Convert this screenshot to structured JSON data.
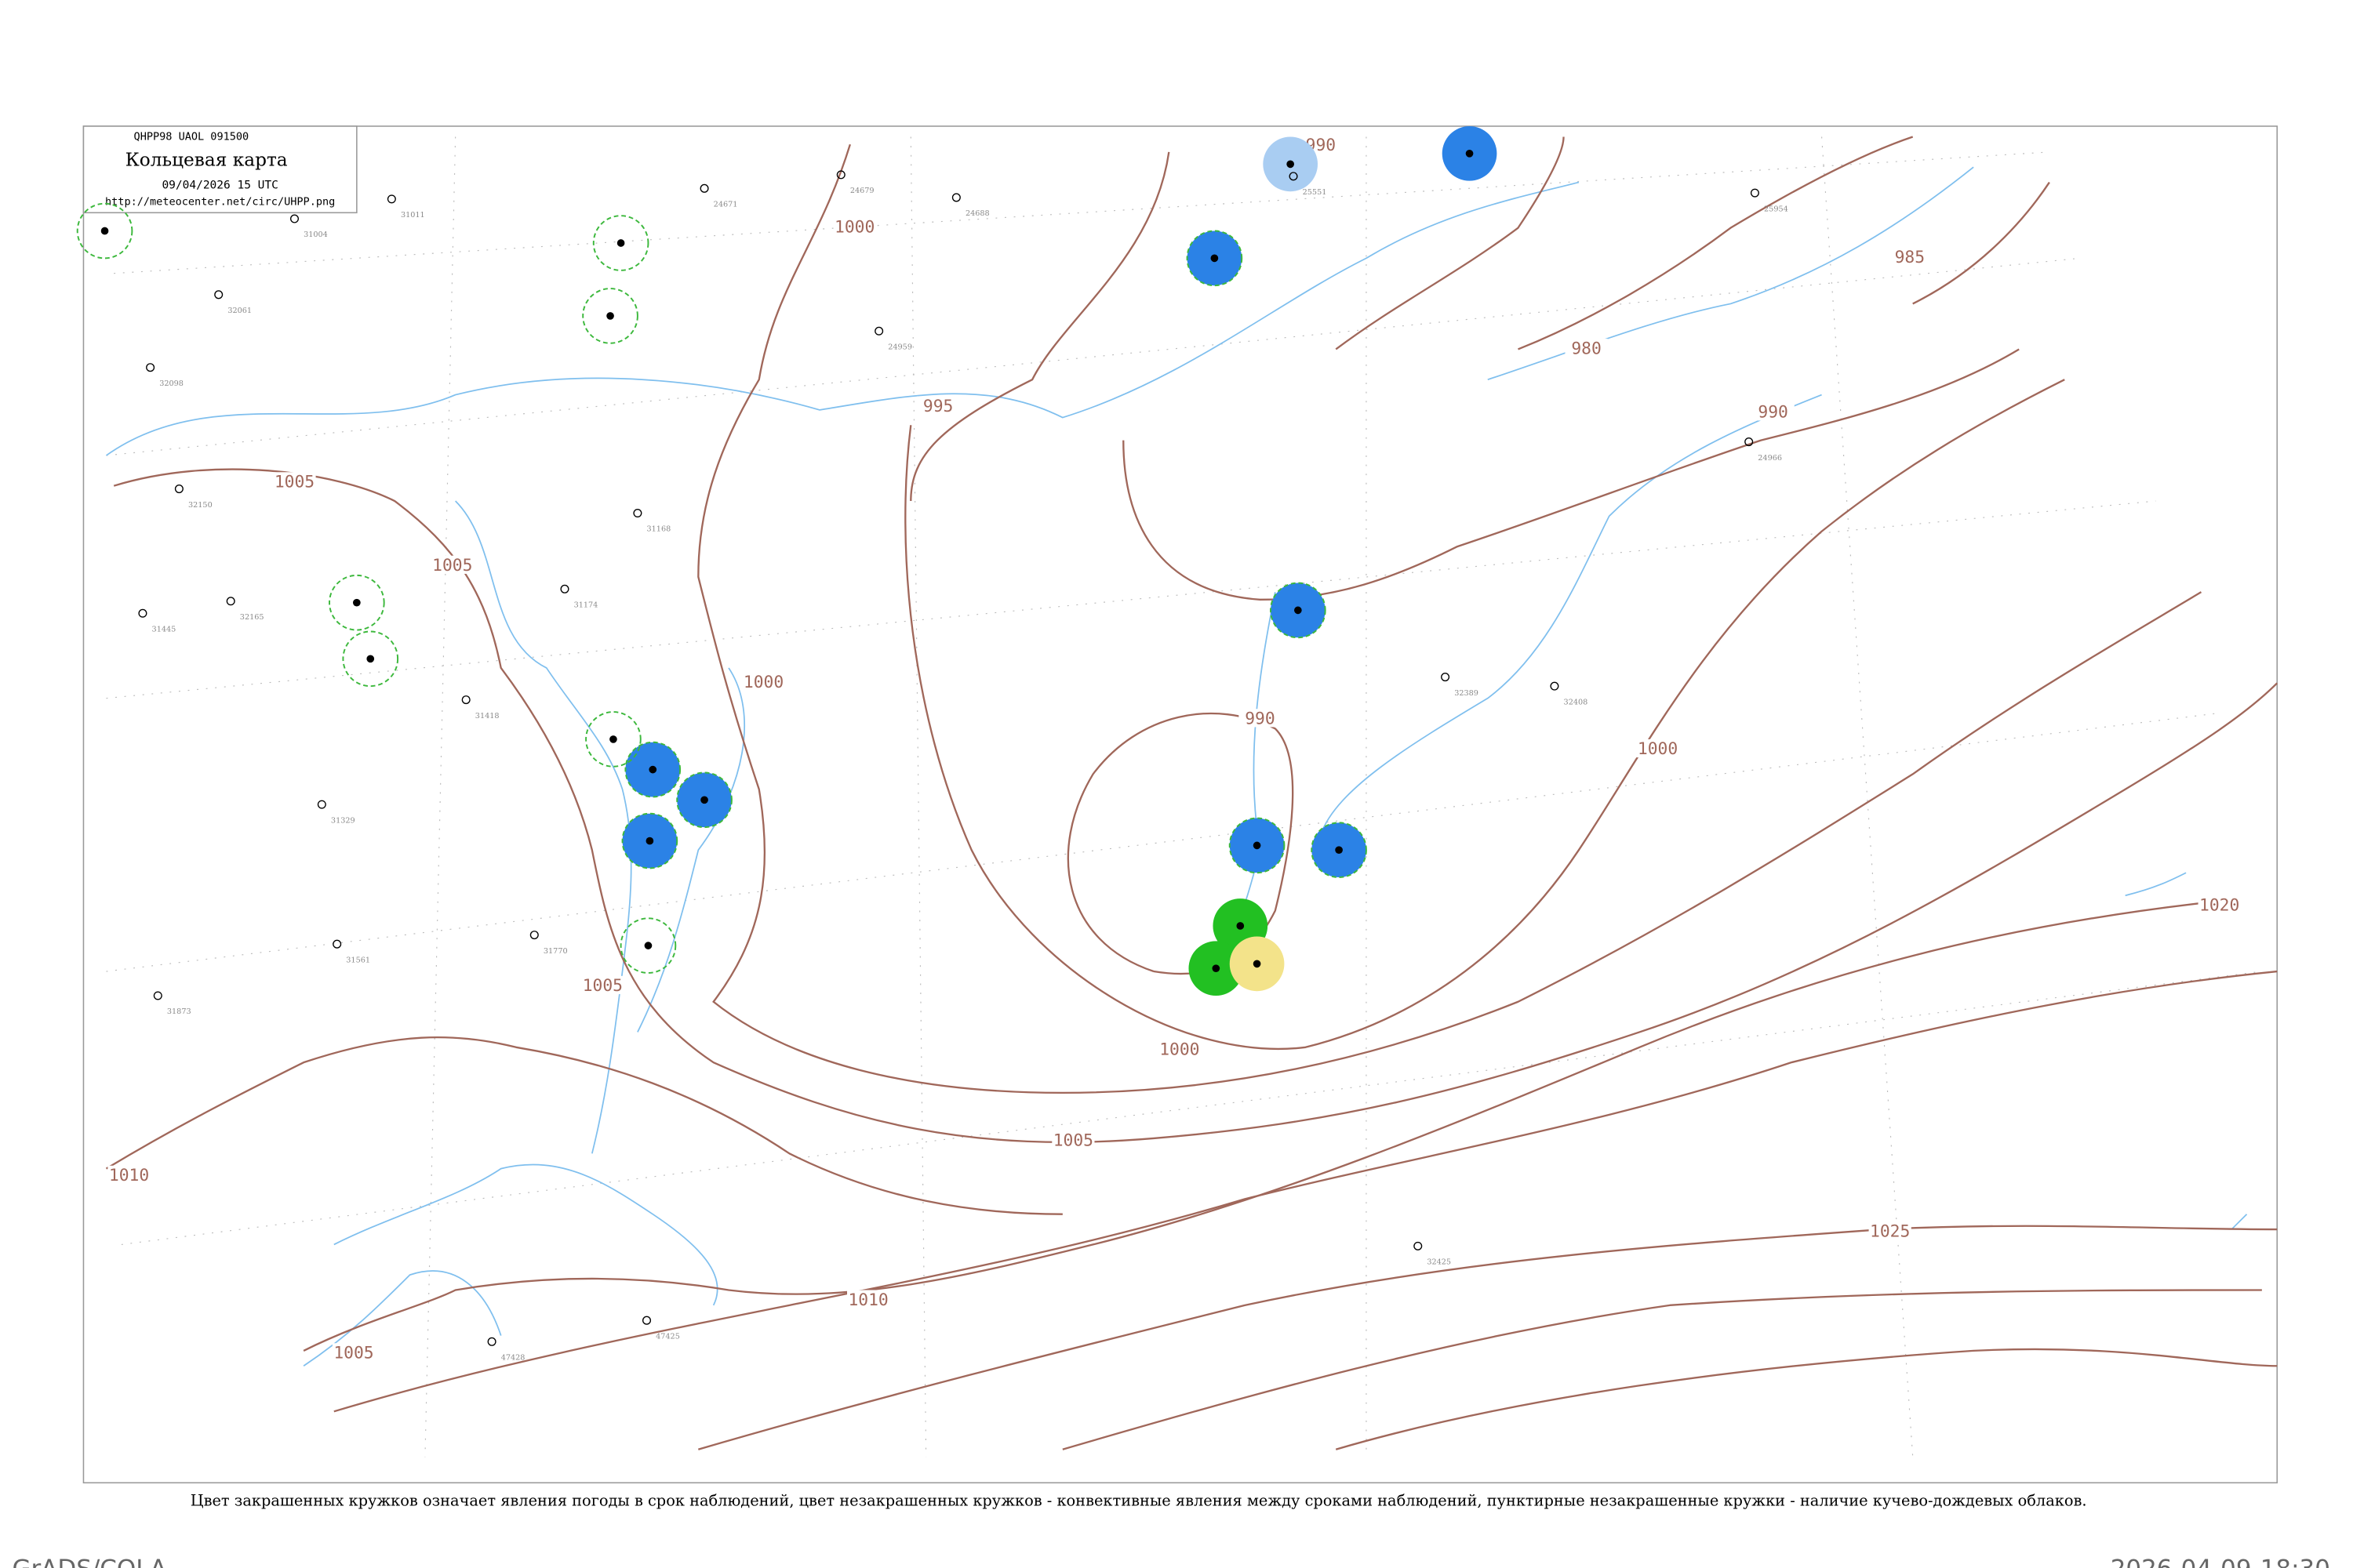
{
  "header": {
    "code": "QHPP98  UAOL  091500",
    "title": "Кольцевая карта",
    "time": "09/04/2026 15 UTC",
    "url": "http://meteocenter.net/circ/UHPP.png"
  },
  "isobar_labels": [
    "990",
    "1000",
    "985",
    "980",
    "990",
    "995",
    "1005",
    "1005",
    "1000",
    "990",
    "1000",
    "1005",
    "1020",
    "1000",
    "1005",
    "1010",
    "1025",
    "1010",
    "1005"
  ],
  "stations": [
    "24679",
    "24688",
    "24671",
    "24959",
    "24966",
    "31004",
    "31011",
    "31168",
    "31174",
    "31329",
    "31418",
    "31445",
    "31561",
    "31770",
    "31873",
    "32061",
    "32098",
    "32150",
    "32165",
    "32389",
    "32408",
    "32425",
    "25551",
    "25954",
    "47425",
    "47428"
  ],
  "weather_circles": [
    {
      "color": "#a9cdf2",
      "dashed": false
    },
    {
      "color": "#2b82e6",
      "dashed": false
    },
    {
      "color": "#2b82e6",
      "dashed": true
    },
    {
      "color": "#2b82e6",
      "dashed": true
    },
    {
      "color": "#2b82e6",
      "dashed": true
    },
    {
      "color": "#2b82e6",
      "dashed": true
    },
    {
      "color": "#2b82e6",
      "dashed": true
    },
    {
      "color": "#2b82e6",
      "dashed": true
    },
    {
      "color": "#2b82e6",
      "dashed": true
    },
    {
      "color": "#22c022",
      "dashed": false
    },
    {
      "color": "#22c022",
      "dashed": false
    },
    {
      "color": "#f3e38a",
      "dashed": false
    },
    {
      "color": "none",
      "dashed": true
    },
    {
      "color": "none",
      "dashed": true
    },
    {
      "color": "none",
      "dashed": true
    },
    {
      "color": "none",
      "dashed": true
    },
    {
      "color": "none",
      "dashed": true
    },
    {
      "color": "none",
      "dashed": true
    },
    {
      "color": "none",
      "dashed": true
    }
  ],
  "caption": "Цвет закрашенных кружков означает явления погоды в срок наблюдений, цвет незакрашенных кружков - конвективные явления между сроками наблюдений, пунктирные незакрашенные кружки - наличие кучево-дождевых облаков.",
  "footer": {
    "left": "GrADS/COLA",
    "right": "2026-04-09-18:30"
  }
}
